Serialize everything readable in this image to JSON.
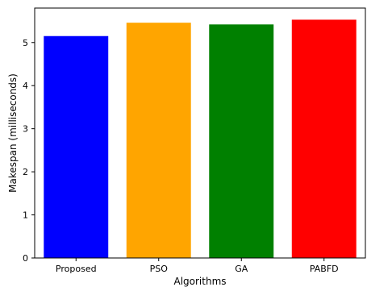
{
  "chart_data": {
    "type": "bar",
    "categories": [
      "Proposed",
      "PSO",
      "GA",
      "PABFD"
    ],
    "values": [
      5.15,
      5.46,
      5.42,
      5.53
    ],
    "colors": [
      "#0000ff",
      "#ffa500",
      "#008000",
      "#ff0000"
    ],
    "xlabel": "Algorithms",
    "ylabel": "Makespan (milliseconds)",
    "ylim": [
      0,
      5.8
    ],
    "yticks": [
      0,
      1,
      2,
      3,
      4,
      5
    ],
    "grid": false
  }
}
